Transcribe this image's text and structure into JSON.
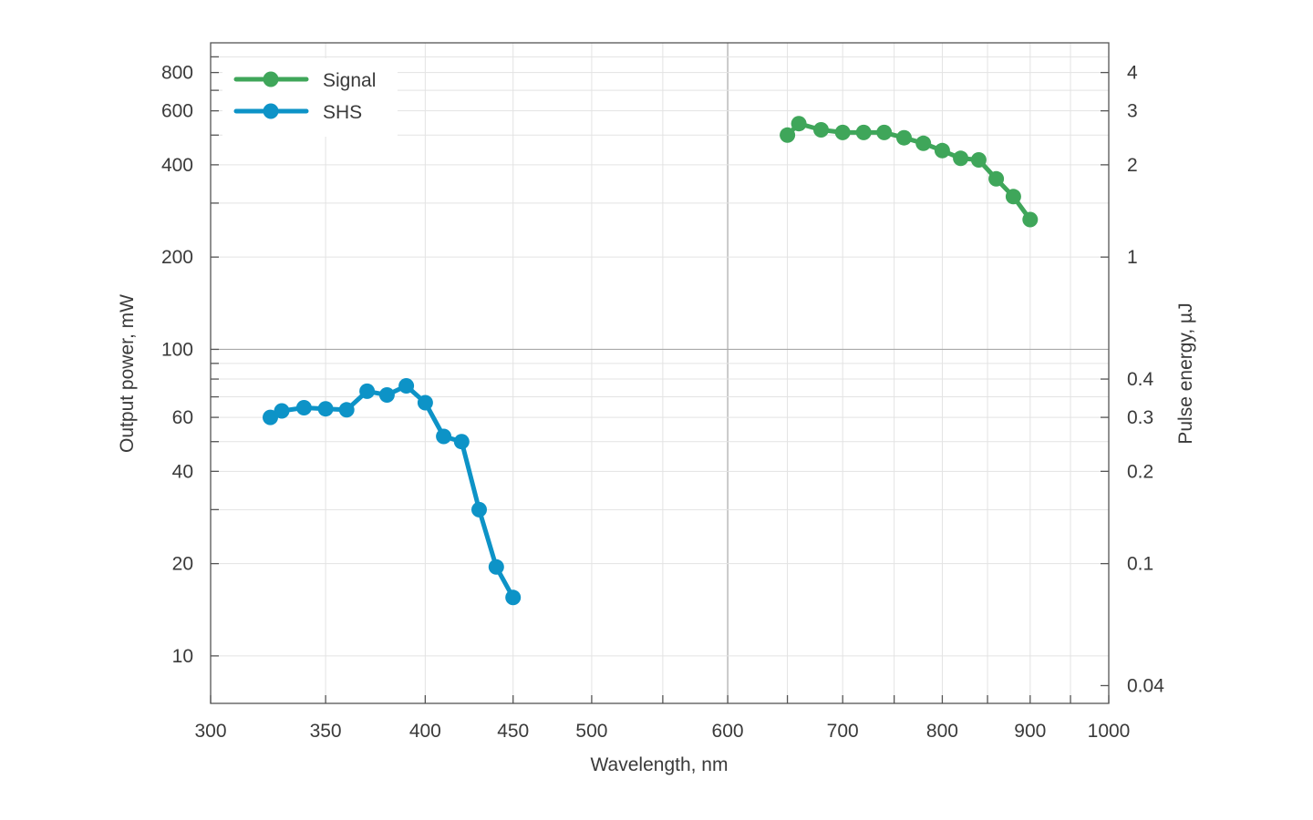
{
  "chart_data": {
    "type": "line",
    "xscale": "log",
    "yscale": "log",
    "xlabel": "Wavelength, nm",
    "ylabel": "Output power, mW",
    "y2label": "Pulse energy, µJ",
    "xlim": [
      300,
      1000
    ],
    "ylim": [
      7,
      1000
    ],
    "y2lim": [
      0.035,
      5
    ],
    "grid": true,
    "legend_position": "top-left",
    "x_ticks": [
      300,
      350,
      400,
      450,
      500,
      600,
      700,
      800,
      900,
      1000
    ],
    "x_tick_labels": [
      "300",
      "350",
      "400",
      "450",
      "500",
      "600",
      "700",
      "800",
      "900",
      "1000"
    ],
    "y_ticks": [
      10,
      20,
      40,
      60,
      100,
      200,
      400,
      600,
      800
    ],
    "y_tick_labels": [
      "10",
      "20",
      "40",
      "60",
      "100",
      "200",
      "400",
      "600",
      "800"
    ],
    "y2_ticks": [
      0.04,
      0.1,
      0.2,
      0.3,
      0.4,
      1,
      2,
      3,
      4
    ],
    "y2_tick_labels": [
      "0.04",
      "0.1",
      "0.2",
      "0.3",
      "0.4",
      "1",
      "2",
      "3",
      "4"
    ],
    "x_minor_grid": [
      550,
      650,
      750,
      850,
      950
    ],
    "y_minor_grid": [
      30,
      50,
      70,
      80,
      90,
      300,
      500,
      700,
      900
    ],
    "x_major_grid": [
      600
    ],
    "y_major_grid": [
      100
    ],
    "series": [
      {
        "name": "Signal",
        "color": "#3fa65a",
        "x": [
          650,
          660,
          680,
          700,
          720,
          740,
          760,
          780,
          800,
          820,
          840,
          860,
          880,
          900
        ],
        "y": [
          500,
          545,
          520,
          510,
          510,
          510,
          490,
          470,
          445,
          420,
          415,
          360,
          315,
          265
        ]
      },
      {
        "name": "SHS",
        "color": "#0d93c7",
        "x": [
          325,
          330,
          340,
          350,
          360,
          370,
          380,
          390,
          400,
          410,
          420,
          430,
          440,
          450
        ],
        "y": [
          60,
          63,
          64.5,
          64,
          63.5,
          73,
          71,
          76,
          67,
          52,
          50,
          30,
          19.5,
          15.5
        ]
      }
    ]
  }
}
